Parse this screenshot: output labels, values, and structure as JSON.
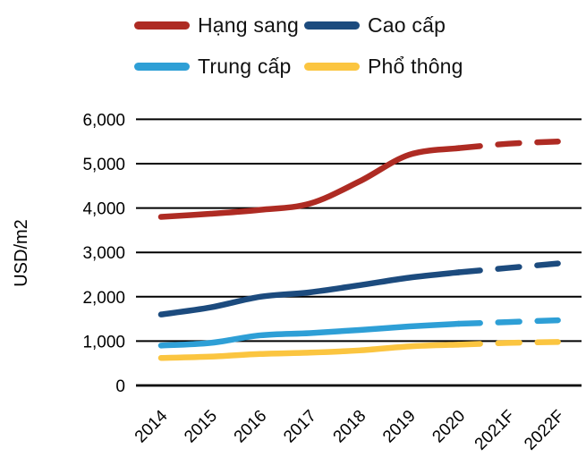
{
  "chart_data": {
    "type": "line",
    "title": "",
    "ylabel": "USD/m2",
    "xlabel": "",
    "ylim": [
      0,
      6000
    ],
    "ytick_step": 1000,
    "ytick_labels": [
      "0",
      "1,000",
      "2,000",
      "3,000",
      "4,000",
      "5,000",
      "6,000"
    ],
    "grid": "horizontal",
    "legend_position": "top",
    "forecast_style": "dashed-after-2020",
    "categories": [
      "2014",
      "2015",
      "2016",
      "2017",
      "2018",
      "2019",
      "2020",
      "2021F",
      "2022F"
    ],
    "series": [
      {
        "name": "Hạng sang",
        "color": "#AE2B23",
        "values": [
          3800,
          3870,
          3960,
          4100,
          4600,
          5200,
          5350,
          5450,
          5500
        ],
        "forecast_from_index": 6
      },
      {
        "name": "Cao cấp",
        "color": "#1C4B7E",
        "values": [
          1600,
          1760,
          2000,
          2100,
          2260,
          2430,
          2550,
          2650,
          2750
        ],
        "forecast_from_index": 6
      },
      {
        "name": "Trung cấp",
        "color": "#2E9FD6",
        "values": [
          900,
          960,
          1130,
          1180,
          1250,
          1330,
          1390,
          1430,
          1470
        ],
        "forecast_from_index": 6
      },
      {
        "name": "Phổ thông",
        "color": "#FBC540",
        "values": [
          620,
          650,
          710,
          740,
          790,
          880,
          920,
          960,
          980
        ],
        "forecast_from_index": 6
      }
    ]
  }
}
